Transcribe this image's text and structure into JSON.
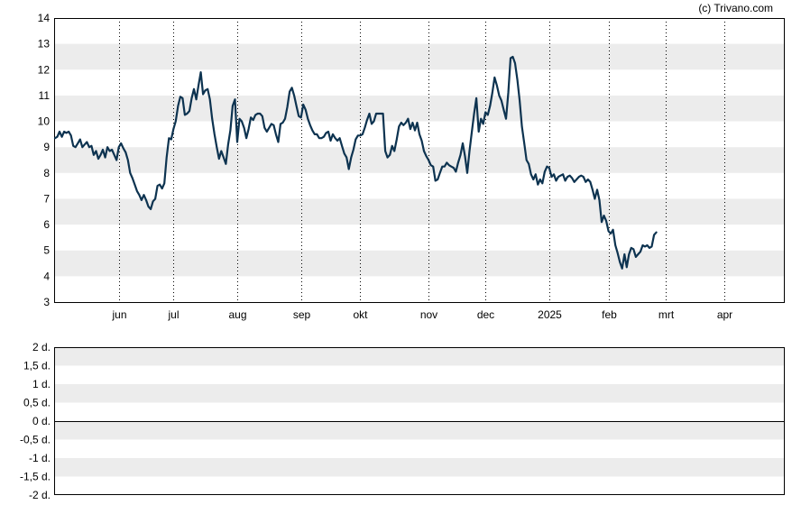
{
  "copyright": "(c) Trivano.com",
  "chart_data": [
    {
      "type": "line",
      "name": "price-chart",
      "ylim": [
        3,
        14
      ],
      "y_ticks": [
        3,
        4,
        5,
        6,
        7,
        8,
        9,
        10,
        11,
        12,
        13,
        14
      ],
      "xlim": [
        0,
        320
      ],
      "x_ticks": [
        {
          "label": "jun",
          "x": 28
        },
        {
          "label": "jul",
          "x": 52
        },
        {
          "label": "aug",
          "x": 80
        },
        {
          "label": "sep",
          "x": 108
        },
        {
          "label": "okt",
          "x": 134
        },
        {
          "label": "nov",
          "x": 164
        },
        {
          "label": "dec",
          "x": 189
        },
        {
          "label": "2025",
          "x": 217
        },
        {
          "label": "feb",
          "x": 243
        },
        {
          "label": "mrt",
          "x": 268
        },
        {
          "label": "apr",
          "x": 294
        }
      ],
      "grid": true,
      "series": [
        {
          "color": "#0d3350",
          "points": [
            [
              0,
              9.35
            ],
            [
              1,
              9.4
            ],
            [
              2,
              9.6
            ],
            [
              3,
              9.4
            ],
            [
              4,
              9.6
            ],
            [
              5,
              9.55
            ],
            [
              6,
              9.6
            ],
            [
              7,
              9.45
            ],
            [
              8,
              9.05
            ],
            [
              9,
              9.0
            ],
            [
              10,
              9.15
            ],
            [
              11,
              9.3
            ],
            [
              12,
              9.0
            ],
            [
              13,
              9.1
            ],
            [
              14,
              9.2
            ],
            [
              15,
              9.0
            ],
            [
              16,
              9.05
            ],
            [
              17,
              8.7
            ],
            [
              18,
              8.85
            ],
            [
              19,
              8.55
            ],
            [
              20,
              8.7
            ],
            [
              21,
              8.9
            ],
            [
              22,
              8.6
            ],
            [
              23,
              9.0
            ],
            [
              24,
              8.85
            ],
            [
              25,
              8.9
            ],
            [
              26,
              8.7
            ],
            [
              27,
              8.5
            ],
            [
              28,
              9.0
            ],
            [
              29,
              9.15
            ],
            [
              30,
              8.95
            ],
            [
              31,
              8.8
            ],
            [
              32,
              8.5
            ],
            [
              33,
              8.0
            ],
            [
              34,
              7.8
            ],
            [
              35,
              7.55
            ],
            [
              36,
              7.3
            ],
            [
              37,
              7.15
            ],
            [
              38,
              6.95
            ],
            [
              39,
              7.15
            ],
            [
              40,
              6.95
            ],
            [
              41,
              6.7
            ],
            [
              42,
              6.6
            ],
            [
              43,
              6.9
            ],
            [
              44,
              7.0
            ],
            [
              45,
              7.5
            ],
            [
              46,
              7.55
            ],
            [
              47,
              7.4
            ],
            [
              48,
              7.6
            ],
            [
              49,
              8.6
            ],
            [
              50,
              9.35
            ],
            [
              51,
              9.3
            ],
            [
              52,
              9.7
            ],
            [
              53,
              10.0
            ],
            [
              54,
              10.6
            ],
            [
              55,
              10.95
            ],
            [
              56,
              10.9
            ],
            [
              57,
              10.25
            ],
            [
              58,
              10.3
            ],
            [
              59,
              10.4
            ],
            [
              60,
              10.9
            ],
            [
              61,
              11.25
            ],
            [
              62,
              10.85
            ],
            [
              63,
              11.4
            ],
            [
              64,
              11.9
            ],
            [
              65,
              11.05
            ],
            [
              66,
              11.2
            ],
            [
              67,
              11.25
            ],
            [
              68,
              10.85
            ],
            [
              69,
              10.1
            ],
            [
              70,
              9.5
            ],
            [
              71,
              9.0
            ],
            [
              72,
              8.55
            ],
            [
              73,
              8.85
            ],
            [
              74,
              8.6
            ],
            [
              75,
              8.35
            ],
            [
              76,
              9.1
            ],
            [
              77,
              9.65
            ],
            [
              78,
              10.6
            ],
            [
              79,
              10.85
            ],
            [
              80,
              9.2
            ],
            [
              81,
              10.1
            ],
            [
              82,
              10.0
            ],
            [
              83,
              9.75
            ],
            [
              84,
              9.35
            ],
            [
              85,
              9.7
            ],
            [
              86,
              10.15
            ],
            [
              87,
              10.05
            ],
            [
              88,
              10.25
            ],
            [
              89,
              10.3
            ],
            [
              90,
              10.3
            ],
            [
              91,
              10.2
            ],
            [
              92,
              9.75
            ],
            [
              93,
              9.6
            ],
            [
              94,
              9.75
            ],
            [
              95,
              9.9
            ],
            [
              96,
              9.85
            ],
            [
              97,
              9.5
            ],
            [
              98,
              9.2
            ],
            [
              99,
              9.9
            ],
            [
              100,
              9.95
            ],
            [
              101,
              10.1
            ],
            [
              102,
              10.55
            ],
            [
              103,
              11.15
            ],
            [
              104,
              11.3
            ],
            [
              105,
              11.0
            ],
            [
              106,
              10.6
            ],
            [
              107,
              10.2
            ],
            [
              108,
              10.15
            ],
            [
              109,
              10.65
            ],
            [
              110,
              10.45
            ],
            [
              111,
              10.1
            ],
            [
              112,
              9.85
            ],
            [
              113,
              9.65
            ],
            [
              114,
              9.5
            ],
            [
              115,
              9.5
            ],
            [
              116,
              9.35
            ],
            [
              117,
              9.35
            ],
            [
              118,
              9.4
            ],
            [
              119,
              9.55
            ],
            [
              120,
              9.6
            ],
            [
              121,
              9.25
            ],
            [
              122,
              9.5
            ],
            [
              123,
              9.35
            ],
            [
              124,
              9.25
            ],
            [
              125,
              9.35
            ],
            [
              126,
              9.05
            ],
            [
              127,
              8.75
            ],
            [
              128,
              8.6
            ],
            [
              129,
              8.15
            ],
            [
              130,
              8.6
            ],
            [
              131,
              8.9
            ],
            [
              132,
              9.3
            ],
            [
              133,
              9.45
            ],
            [
              134,
              9.45
            ],
            [
              135,
              9.5
            ],
            [
              136,
              9.75
            ],
            [
              137,
              10.05
            ],
            [
              138,
              10.3
            ],
            [
              139,
              9.9
            ],
            [
              140,
              10.0
            ],
            [
              141,
              10.3
            ],
            [
              142,
              10.3
            ],
            [
              143,
              10.3
            ],
            [
              144,
              10.3
            ],
            [
              145,
              8.85
            ],
            [
              146,
              8.6
            ],
            [
              147,
              8.7
            ],
            [
              148,
              9.05
            ],
            [
              149,
              8.85
            ],
            [
              150,
              9.3
            ],
            [
              151,
              9.8
            ],
            [
              152,
              9.95
            ],
            [
              153,
              9.85
            ],
            [
              154,
              9.95
            ],
            [
              155,
              10.1
            ],
            [
              156,
              9.7
            ],
            [
              157,
              9.95
            ],
            [
              158,
              9.65
            ],
            [
              159,
              9.95
            ],
            [
              160,
              9.5
            ],
            [
              161,
              9.25
            ],
            [
              162,
              8.85
            ],
            [
              163,
              8.65
            ],
            [
              164,
              8.5
            ],
            [
              165,
              8.3
            ],
            [
              166,
              8.25
            ],
            [
              167,
              7.7
            ],
            [
              168,
              7.75
            ],
            [
              169,
              8.0
            ],
            [
              170,
              8.25
            ],
            [
              171,
              8.25
            ],
            [
              172,
              8.4
            ],
            [
              173,
              8.3
            ],
            [
              174,
              8.25
            ],
            [
              175,
              8.2
            ],
            [
              176,
              8.05
            ],
            [
              177,
              8.4
            ],
            [
              178,
              8.7
            ],
            [
              179,
              9.15
            ],
            [
              180,
              8.65
            ],
            [
              181,
              8.0
            ],
            [
              182,
              8.85
            ],
            [
              183,
              9.6
            ],
            [
              184,
              10.3
            ],
            [
              185,
              10.9
            ],
            [
              186,
              9.6
            ],
            [
              187,
              10.1
            ],
            [
              188,
              9.9
            ],
            [
              189,
              10.35
            ],
            [
              190,
              10.25
            ],
            [
              191,
              10.6
            ],
            [
              192,
              11.1
            ],
            [
              193,
              11.7
            ],
            [
              194,
              11.4
            ],
            [
              195,
              11.0
            ],
            [
              196,
              10.8
            ],
            [
              197,
              10.45
            ],
            [
              198,
              10.1
            ],
            [
              199,
              11.1
            ],
            [
              200,
              12.45
            ],
            [
              201,
              12.5
            ],
            [
              202,
              12.25
            ],
            [
              203,
              11.6
            ],
            [
              204,
              10.8
            ],
            [
              205,
              9.8
            ],
            [
              206,
              9.15
            ],
            [
              207,
              8.5
            ],
            [
              208,
              8.35
            ],
            [
              209,
              7.95
            ],
            [
              210,
              7.75
            ],
            [
              211,
              7.95
            ],
            [
              212,
              7.55
            ],
            [
              213,
              7.75
            ],
            [
              214,
              7.6
            ],
            [
              215,
              8.05
            ],
            [
              216,
              8.25
            ],
            [
              217,
              8.2
            ],
            [
              218,
              7.85
            ],
            [
              219,
              7.95
            ],
            [
              220,
              7.7
            ],
            [
              221,
              7.85
            ],
            [
              222,
              7.9
            ],
            [
              223,
              7.95
            ],
            [
              224,
              7.7
            ],
            [
              225,
              7.85
            ],
            [
              226,
              7.9
            ],
            [
              227,
              7.8
            ],
            [
              228,
              7.65
            ],
            [
              229,
              7.75
            ],
            [
              230,
              7.85
            ],
            [
              231,
              7.9
            ],
            [
              232,
              7.85
            ],
            [
              233,
              7.65
            ],
            [
              234,
              7.75
            ],
            [
              235,
              7.65
            ],
            [
              236,
              7.35
            ],
            [
              237,
              7.0
            ],
            [
              238,
              7.35
            ],
            [
              239,
              6.95
            ],
            [
              240,
              6.1
            ],
            [
              241,
              6.35
            ],
            [
              242,
              6.15
            ],
            [
              243,
              5.75
            ],
            [
              244,
              5.65
            ],
            [
              245,
              5.8
            ],
            [
              246,
              5.2
            ],
            [
              247,
              4.9
            ],
            [
              248,
              4.55
            ],
            [
              249,
              4.3
            ],
            [
              250,
              4.85
            ],
            [
              251,
              4.35
            ],
            [
              252,
              4.85
            ],
            [
              253,
              5.1
            ],
            [
              254,
              5.05
            ],
            [
              255,
              4.75
            ],
            [
              256,
              4.85
            ],
            [
              257,
              4.95
            ],
            [
              258,
              5.2
            ],
            [
              259,
              5.15
            ],
            [
              260,
              5.2
            ],
            [
              261,
              5.1
            ],
            [
              262,
              5.15
            ],
            [
              263,
              5.6
            ],
            [
              264,
              5.7
            ]
          ]
        }
      ]
    },
    {
      "type": "line",
      "name": "volume-panel",
      "y_ticks": [
        {
          "label": "2 d.",
          "v": 2
        },
        {
          "label": "1,5 d.",
          "v": 1.5
        },
        {
          "label": "1 d.",
          "v": 1
        },
        {
          "label": "0,5 d.",
          "v": 0.5
        },
        {
          "label": "0 d.",
          "v": 0
        },
        {
          "label": "-0,5 d.",
          "v": -0.5
        },
        {
          "label": "-1 d.",
          "v": -1
        },
        {
          "label": "-1,5 d.",
          "v": -1.5
        },
        {
          "label": "-2 d.",
          "v": -2
        }
      ],
      "ylim": [
        -2,
        2
      ],
      "grid": true,
      "series": []
    }
  ]
}
